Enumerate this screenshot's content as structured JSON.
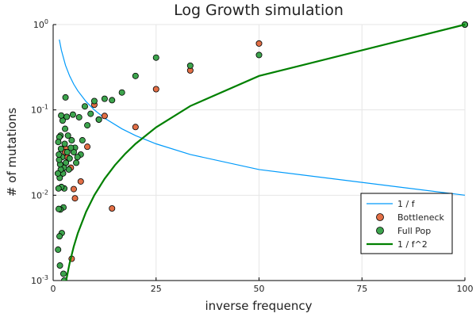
{
  "chart_data": {
    "type": "scatter",
    "title": "Log Growth simulation",
    "xlabel": "inverse frequency",
    "ylabel": "# of mutations",
    "xlim": [
      0,
      100
    ],
    "ylim": [
      0.001,
      1
    ],
    "yscale": "log",
    "x_ticks": [
      0,
      25,
      50,
      75,
      100
    ],
    "y_ticks": [
      {
        "value": 0.001,
        "base": "10",
        "exp": "-3"
      },
      {
        "value": 0.01,
        "base": "10",
        "exp": "-2"
      },
      {
        "value": 0.1,
        "base": "10",
        "exp": "-1"
      },
      {
        "value": 1,
        "base": "10",
        "exp": "0"
      }
    ],
    "grid": true,
    "legend_position": "bottom-right",
    "series": [
      {
        "name": "1 / f",
        "kind": "line",
        "color": "#009AFA",
        "points": [
          [
            1.5,
            0.667
          ],
          [
            2,
            0.5
          ],
          [
            3,
            0.333
          ],
          [
            4,
            0.25
          ],
          [
            5,
            0.2
          ],
          [
            6,
            0.167
          ],
          [
            8,
            0.125
          ],
          [
            10,
            0.1
          ],
          [
            12.5,
            0.08
          ],
          [
            16.7,
            0.06
          ],
          [
            20,
            0.05
          ],
          [
            25,
            0.04
          ],
          [
            33.3,
            0.03
          ],
          [
            50,
            0.02
          ],
          [
            100,
            0.01
          ]
        ]
      },
      {
        "name": "Bottleneck",
        "kind": "scatter",
        "color": "#E26F46",
        "points": [
          [
            100,
            1.0
          ],
          [
            50,
            0.6
          ],
          [
            33.3,
            0.29
          ],
          [
            25,
            0.175
          ],
          [
            20,
            0.063
          ],
          [
            14.3,
            0.007
          ],
          [
            12.5,
            0.085
          ],
          [
            11.1,
            0.077
          ],
          [
            10,
            0.115
          ],
          [
            8.3,
            0.037
          ],
          [
            6.7,
            0.0145
          ],
          [
            5.3,
            0.0092
          ],
          [
            5.0,
            0.0118
          ],
          [
            4.5,
            0.0018
          ],
          [
            4.3,
            0.021
          ],
          [
            3.5,
            0.028
          ],
          [
            3.1,
            0.035
          ],
          [
            2.9,
            0.032
          ]
        ]
      },
      {
        "name": "Full Pop",
        "kind": "scatter",
        "color": "#3DA44D",
        "points": [
          [
            100,
            1.0
          ],
          [
            50,
            0.44
          ],
          [
            33.3,
            0.33
          ],
          [
            25,
            0.41
          ],
          [
            20,
            0.25
          ],
          [
            16.7,
            0.16
          ],
          [
            14.3,
            0.13
          ],
          [
            12.5,
            0.135
          ],
          [
            11.1,
            0.077
          ],
          [
            10,
            0.127
          ],
          [
            9.1,
            0.09
          ],
          [
            8.3,
            0.066
          ],
          [
            7.7,
            0.11
          ],
          [
            7.1,
            0.044
          ],
          [
            6.7,
            0.03
          ],
          [
            6.3,
            0.082
          ],
          [
            5.9,
            0.028
          ],
          [
            5.6,
            0.024
          ],
          [
            5.3,
            0.036
          ],
          [
            5.0,
            0.032
          ],
          [
            4.8,
            0.088
          ],
          [
            4.5,
            0.044
          ],
          [
            4.3,
            0.036
          ],
          [
            4.0,
            0.027
          ],
          [
            3.8,
            0.02
          ],
          [
            3.6,
            0.05
          ],
          [
            3.4,
            0.032
          ],
          [
            3.3,
            0.083
          ],
          [
            3.1,
            0.024
          ],
          [
            3.0,
            0.14
          ],
          [
            2.9,
            0.06
          ],
          [
            2.8,
            0.04
          ],
          [
            2.7,
            0.012
          ],
          [
            2.6,
            0.021
          ],
          [
            2.5,
            0.0072
          ],
          [
            2.4,
            0.018
          ],
          [
            2.3,
            0.075
          ],
          [
            2.2,
            0.028
          ],
          [
            2.1,
            0.0036
          ],
          [
            2.0,
            0.0125
          ],
          [
            1.95,
            0.086
          ],
          [
            1.9,
            0.035
          ],
          [
            1.85,
            0.02
          ],
          [
            1.8,
            0.05
          ],
          [
            1.75,
            0.0068
          ],
          [
            1.7,
            0.023
          ],
          [
            1.65,
            0.0015
          ],
          [
            1.6,
            0.016
          ],
          [
            1.55,
            0.0033
          ],
          [
            1.5,
            0.048
          ],
          [
            1.45,
            0.026
          ],
          [
            1.4,
            0.03
          ],
          [
            1.35,
            0.0069
          ],
          [
            1.3,
            0.012
          ],
          [
            1.25,
            0.042
          ],
          [
            1.2,
            0.0023
          ],
          [
            1.15,
            0.018
          ],
          [
            2.5,
            0.0012
          ],
          [
            2.7,
            0.001
          ]
        ]
      },
      {
        "name": "1 / f^2",
        "kind": "line",
        "color": "#008000",
        "points": [
          [
            3.16,
            0.001
          ],
          [
            4,
            0.0016
          ],
          [
            5,
            0.0025
          ],
          [
            6,
            0.0036
          ],
          [
            8,
            0.0064
          ],
          [
            10,
            0.01
          ],
          [
            12.5,
            0.0156
          ],
          [
            15,
            0.0225
          ],
          [
            17.5,
            0.0306
          ],
          [
            20,
            0.04
          ],
          [
            25,
            0.0625
          ],
          [
            33.3,
            0.111
          ],
          [
            50,
            0.25
          ],
          [
            100,
            1.0
          ]
        ]
      }
    ]
  }
}
